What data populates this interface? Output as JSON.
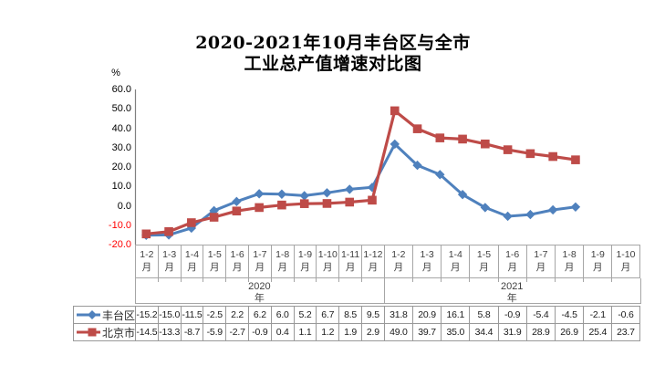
{
  "title": {
    "line1": "2020-2021年10月丰台区与全市",
    "line2": "工业总产值增速对比图"
  },
  "y_axis": {
    "unit": "%",
    "tick_labels": [
      "60.0",
      "50.0",
      "40.0",
      "30.0",
      "20.0",
      "10.0",
      "0.0",
      "-10.0",
      "-20.0"
    ],
    "negative_color": "#ff0000"
  },
  "chart_data": {
    "type": "line",
    "title": "2020-2021年10月丰台区与全市工业总产值增速对比图",
    "ylabel": "%",
    "ylim": [
      -20,
      60
    ],
    "y_tick_step": 10,
    "grid": false,
    "legend_position": "data-table-left",
    "x_groups": [
      {
        "year": "2020",
        "year_suffix": "年",
        "categories": [
          "1-2月",
          "1-3月",
          "1-4月",
          "1-5月",
          "1-6月",
          "1-7月",
          "1-8月",
          "1-9月",
          "1-10月",
          "1-11月",
          "1-12月"
        ]
      },
      {
        "year": "2021",
        "year_suffix": "年",
        "categories": [
          "1-2月",
          "1-3月",
          "1-4月",
          "1-5月",
          "1-6月",
          "1-7月",
          "1-8月",
          "1-9月",
          "1-10月"
        ]
      }
    ],
    "series": [
      {
        "name": "丰台区",
        "color": "#4F81BD",
        "marker": "diamond",
        "values": [
          -15.2,
          -15.0,
          -11.5,
          -2.5,
          2.2,
          6.2,
          6.0,
          5.2,
          6.7,
          8.5,
          9.5,
          31.8,
          20.9,
          16.1,
          5.8,
          -0.9,
          -5.4,
          -4.5,
          -2.1,
          -0.6
        ]
      },
      {
        "name": "北京市",
        "color": "#BE4B48",
        "marker": "square",
        "values": [
          -14.5,
          -13.3,
          -8.7,
          -5.9,
          -2.7,
          -0.9,
          0.4,
          1.1,
          1.2,
          1.9,
          2.9,
          49.0,
          39.7,
          35.0,
          34.4,
          31.9,
          28.9,
          26.9,
          25.4,
          23.7
        ]
      }
    ]
  },
  "colors": {
    "axis_line": "#808080",
    "table_border": "#a6a6a6",
    "negative_tick": "#ff0000"
  }
}
